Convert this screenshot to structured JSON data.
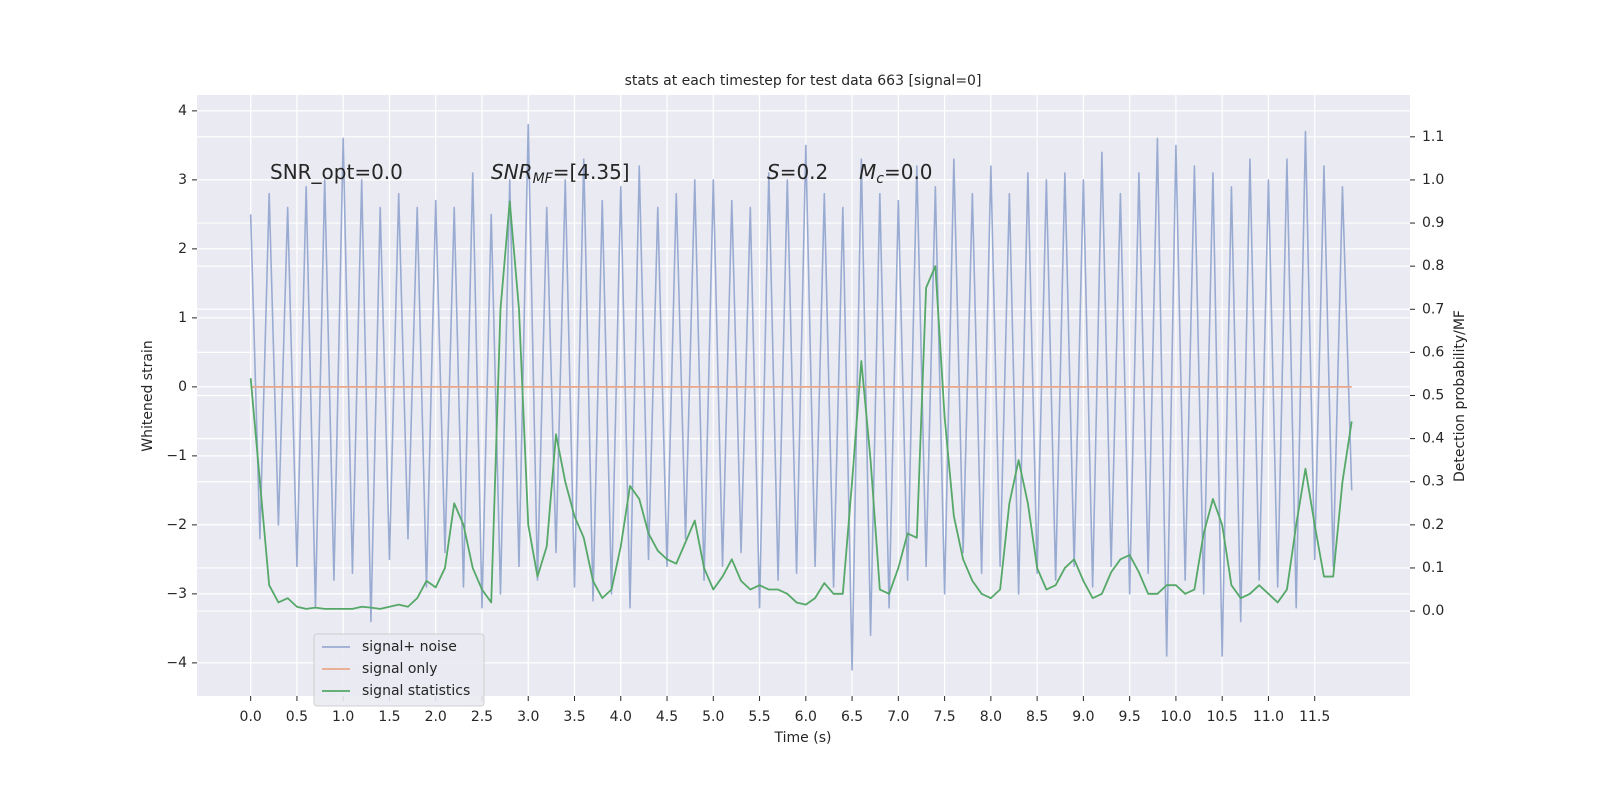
{
  "chart_data": {
    "type": "line",
    "title": "stats at each timestep for test data 663 [signal=0]",
    "xlabel": "Time (s)",
    "ylabel": "Whitened strain",
    "y2label": "Detection probability/MF",
    "annotations": [
      {
        "base": "SNR_opt=0.0"
      },
      {
        "base": "SNR",
        "sub": "MF",
        "rest": "=[4.35]"
      },
      {
        "base": "S",
        "rest": "=0.2"
      },
      {
        "base": "M",
        "sub": "c",
        "rest": "=0.0"
      }
    ],
    "x": [
      0.0,
      0.1,
      0.2,
      0.3,
      0.4,
      0.5,
      0.6,
      0.7,
      0.8,
      0.9,
      1.0,
      1.1,
      1.2,
      1.3,
      1.4,
      1.5,
      1.6,
      1.7,
      1.8,
      1.9,
      2.0,
      2.1,
      2.2,
      2.3,
      2.4,
      2.5,
      2.6,
      2.7,
      2.8,
      2.9,
      3.0,
      3.1,
      3.2,
      3.3,
      3.4,
      3.5,
      3.6,
      3.7,
      3.8,
      3.9,
      4.0,
      4.1,
      4.2,
      4.3,
      4.4,
      4.5,
      4.6,
      4.7,
      4.8,
      4.9,
      5.0,
      5.1,
      5.2,
      5.3,
      5.4,
      5.5,
      5.6,
      5.7,
      5.8,
      5.9,
      6.0,
      6.1,
      6.2,
      6.3,
      6.4,
      6.5,
      6.6,
      6.7,
      6.8,
      6.9,
      7.0,
      7.1,
      7.2,
      7.3,
      7.4,
      7.5,
      7.6,
      7.7,
      7.8,
      7.9,
      8.0,
      8.1,
      8.2,
      8.3,
      8.4,
      8.5,
      8.6,
      8.7,
      8.8,
      8.9,
      9.0,
      9.1,
      9.2,
      9.3,
      9.4,
      9.5,
      9.6,
      9.7,
      9.8,
      9.9,
      10.0,
      10.1,
      10.2,
      10.3,
      10.4,
      10.5,
      10.6,
      10.7,
      10.8,
      10.9,
      11.0,
      11.1,
      11.2,
      11.3,
      11.4,
      11.5,
      11.6,
      11.7,
      11.8,
      11.9
    ],
    "series": [
      {
        "name": "signal+ noise",
        "color": "#9aabd2",
        "axis": "y",
        "values": [
          2.5,
          -2.2,
          2.8,
          -2.0,
          2.6,
          -2.6,
          2.9,
          -3.2,
          3.0,
          -2.8,
          3.6,
          -2.7,
          3.0,
          -3.4,
          2.6,
          -2.5,
          2.8,
          -2.2,
          2.6,
          -2.9,
          2.7,
          -2.4,
          2.6,
          -2.9,
          3.1,
          -3.2,
          2.5,
          -3.0,
          3.0,
          -2.6,
          3.8,
          -2.8,
          2.6,
          -2.4,
          3.0,
          -2.9,
          3.3,
          -3.1,
          2.7,
          -3.0,
          2.9,
          -3.2,
          3.2,
          -2.5,
          2.6,
          -2.6,
          2.8,
          -2.2,
          3.0,
          -2.8,
          3.0,
          -2.6,
          2.7,
          -2.4,
          2.6,
          -3.2,
          3.1,
          -2.8,
          3.0,
          -2.7,
          3.5,
          -2.6,
          2.8,
          -2.9,
          2.6,
          -4.1,
          3.3,
          -3.6,
          2.8,
          -3.2,
          2.7,
          -2.8,
          3.2,
          -2.6,
          2.9,
          -3.0,
          3.3,
          -2.4,
          2.8,
          -2.7,
          3.2,
          -2.6,
          2.8,
          -3.0,
          3.1,
          -2.7,
          3.0,
          -2.8,
          3.1,
          -2.6,
          3.0,
          -2.9,
          3.4,
          -2.6,
          2.8,
          -3.0,
          3.1,
          -2.7,
          3.6,
          -3.9,
          3.5,
          -2.8,
          3.2,
          -3.0,
          3.1,
          -3.9,
          2.9,
          -3.4,
          3.3,
          -2.8,
          3.0,
          -2.9,
          3.3,
          -3.2,
          3.7,
          -2.5,
          3.2,
          -2.6,
          2.9,
          -1.5
        ]
      },
      {
        "name": "signal only",
        "color": "#e8a88a",
        "axis": "y",
        "x": [
          0.0,
          11.9
        ],
        "values": [
          0,
          0
        ]
      },
      {
        "name": "signal statistics",
        "color": "#55a868",
        "axis": "y2",
        "values": [
          0.54,
          0.3,
          0.06,
          0.02,
          0.03,
          0.01,
          0.005,
          0.008,
          0.005,
          0.005,
          0.005,
          0.005,
          0.01,
          0.008,
          0.005,
          0.01,
          0.015,
          0.01,
          0.03,
          0.07,
          0.055,
          0.1,
          0.25,
          0.2,
          0.1,
          0.05,
          0.02,
          0.7,
          0.95,
          0.7,
          0.2,
          0.08,
          0.15,
          0.41,
          0.3,
          0.22,
          0.17,
          0.07,
          0.03,
          0.05,
          0.15,
          0.29,
          0.26,
          0.18,
          0.14,
          0.12,
          0.11,
          0.16,
          0.21,
          0.1,
          0.05,
          0.08,
          0.12,
          0.07,
          0.05,
          0.06,
          0.05,
          0.05,
          0.04,
          0.02,
          0.015,
          0.03,
          0.065,
          0.04,
          0.04,
          0.3,
          0.58,
          0.35,
          0.05,
          0.04,
          0.1,
          0.18,
          0.17,
          0.75,
          0.8,
          0.45,
          0.22,
          0.12,
          0.07,
          0.04,
          0.03,
          0.05,
          0.25,
          0.35,
          0.25,
          0.1,
          0.05,
          0.06,
          0.1,
          0.12,
          0.07,
          0.03,
          0.04,
          0.09,
          0.12,
          0.13,
          0.09,
          0.04,
          0.04,
          0.06,
          0.06,
          0.04,
          0.05,
          0.18,
          0.26,
          0.2,
          0.06,
          0.03,
          0.04,
          0.06,
          0.04,
          0.02,
          0.05,
          0.2,
          0.33,
          0.2,
          0.08,
          0.08,
          0.3,
          0.44
        ]
      }
    ],
    "xlim": [
      -0.58,
      12.53
    ],
    "ylim": [
      -4.48,
      4.23
    ],
    "y2lim": [
      -0.197,
      1.197
    ],
    "xticks": [
      {
        "value": 0,
        "label": "0.0"
      },
      {
        "value": 0.5,
        "label": "0.5"
      },
      {
        "value": 1,
        "label": "1.0"
      },
      {
        "value": 1.5,
        "label": "1.5"
      },
      {
        "value": 2,
        "label": "2.0"
      },
      {
        "value": 2.5,
        "label": "2.5"
      },
      {
        "value": 3,
        "label": "3.0"
      },
      {
        "value": 3.5,
        "label": "3.5"
      },
      {
        "value": 4,
        "label": "4.0"
      },
      {
        "value": 4.5,
        "label": "4.5"
      },
      {
        "value": 5,
        "label": "5.0"
      },
      {
        "value": 5.5,
        "label": "5.5"
      },
      {
        "value": 6,
        "label": "6.0"
      },
      {
        "value": 6.5,
        "label": "6.5"
      },
      {
        "value": 7,
        "label": "7.0"
      },
      {
        "value": 7.5,
        "label": "7.5"
      },
      {
        "value": 8,
        "label": "8.0"
      },
      {
        "value": 8.5,
        "label": "8.5"
      },
      {
        "value": 9,
        "label": "9.0"
      },
      {
        "value": 9.5,
        "label": "9.5"
      },
      {
        "value": 10,
        "label": "10.0"
      },
      {
        "value": 10.5,
        "label": "10.5"
      },
      {
        "value": 11,
        "label": "11.0"
      },
      {
        "value": 11.5,
        "label": "11.5"
      }
    ],
    "yticks": [
      {
        "value": -4,
        "label": "−4"
      },
      {
        "value": -3,
        "label": "−3"
      },
      {
        "value": -2,
        "label": "−2"
      },
      {
        "value": -1,
        "label": "−1"
      },
      0,
      1,
      2,
      3,
      4
    ],
    "y2ticks": [
      {
        "value": 0,
        "label": "0.0"
      },
      0.1,
      0.2,
      0.3,
      0.4,
      0.5,
      0.6,
      0.7,
      0.8,
      0.9,
      {
        "value": 1,
        "label": "1.0"
      },
      1.1
    ],
    "grid": true,
    "legend": "lower left"
  }
}
